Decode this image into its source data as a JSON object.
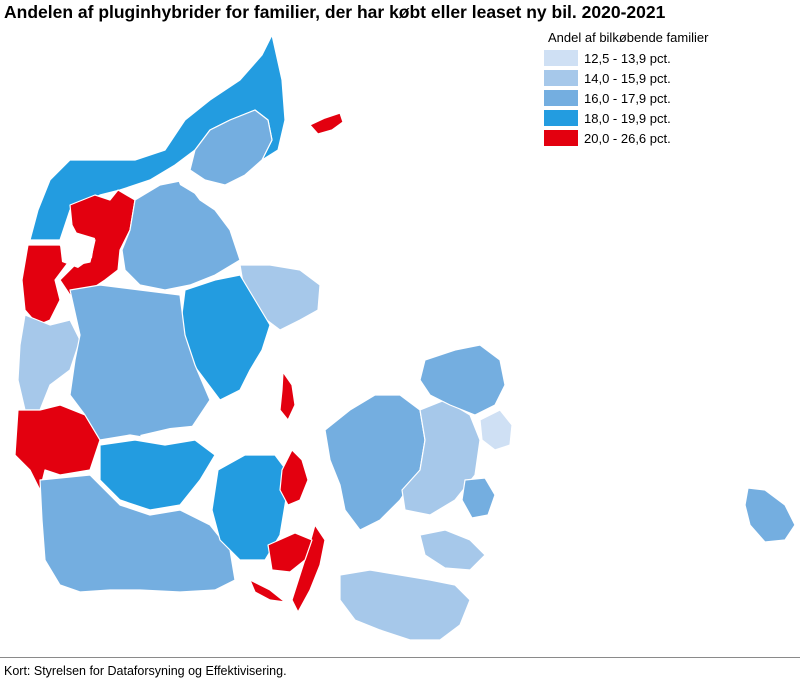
{
  "title": "Andelen af pluginhybrider for familier, der har købt eller leaset ny bil. 2020-2021",
  "legend": {
    "title": "Andel af bilkøbende familier",
    "items": [
      {
        "label": "12,5 - 13,9 pct.",
        "color": "#cfe0f4"
      },
      {
        "label": "14,0 - 15,9 pct.",
        "color": "#a6c8ea"
      },
      {
        "label": "16,0 - 17,9 pct.",
        "color": "#74aee0"
      },
      {
        "label": "18,0 - 19,9 pct.",
        "color": "#239ce0"
      },
      {
        "label": "20,0 - 26,6 pct.",
        "color": "#e3000f"
      }
    ]
  },
  "source": "Kort: Styrelsen for Dataforsyning og Effektivisering.",
  "regions": [
    {
      "name": "north-jutland-coast",
      "cls": 3
    },
    {
      "name": "thy-mors-west",
      "cls": 4
    },
    {
      "name": "west-jutland-coast",
      "cls": 4
    },
    {
      "name": "southwest-coast",
      "cls": 4
    },
    {
      "name": "central-west-jutland",
      "cls": 1
    },
    {
      "name": "himmerland",
      "cls": 2
    },
    {
      "name": "vendsyssel-east",
      "cls": 2
    },
    {
      "name": "djursland",
      "cls": 1
    },
    {
      "name": "aarhus-area",
      "cls": 3
    },
    {
      "name": "central-jutland",
      "cls": 2
    },
    {
      "name": "vejle-area",
      "cls": 3
    },
    {
      "name": "south-jutland",
      "cls": 2
    },
    {
      "name": "funen-west",
      "cls": 3
    },
    {
      "name": "funen-east",
      "cls": 4
    },
    {
      "name": "langeland",
      "cls": 4
    },
    {
      "name": "aeroe",
      "cls": 4
    },
    {
      "name": "samsoe",
      "cls": 4
    },
    {
      "name": "laesoe",
      "cls": 4
    },
    {
      "name": "zealand-west",
      "cls": 2
    },
    {
      "name": "zealand-central",
      "cls": 1
    },
    {
      "name": "north-zealand",
      "cls": 2
    },
    {
      "name": "copenhagen",
      "cls": 0
    },
    {
      "name": "stevns",
      "cls": 2
    },
    {
      "name": "lolland-falster",
      "cls": 1
    },
    {
      "name": "bornholm",
      "cls": 2
    }
  ]
}
